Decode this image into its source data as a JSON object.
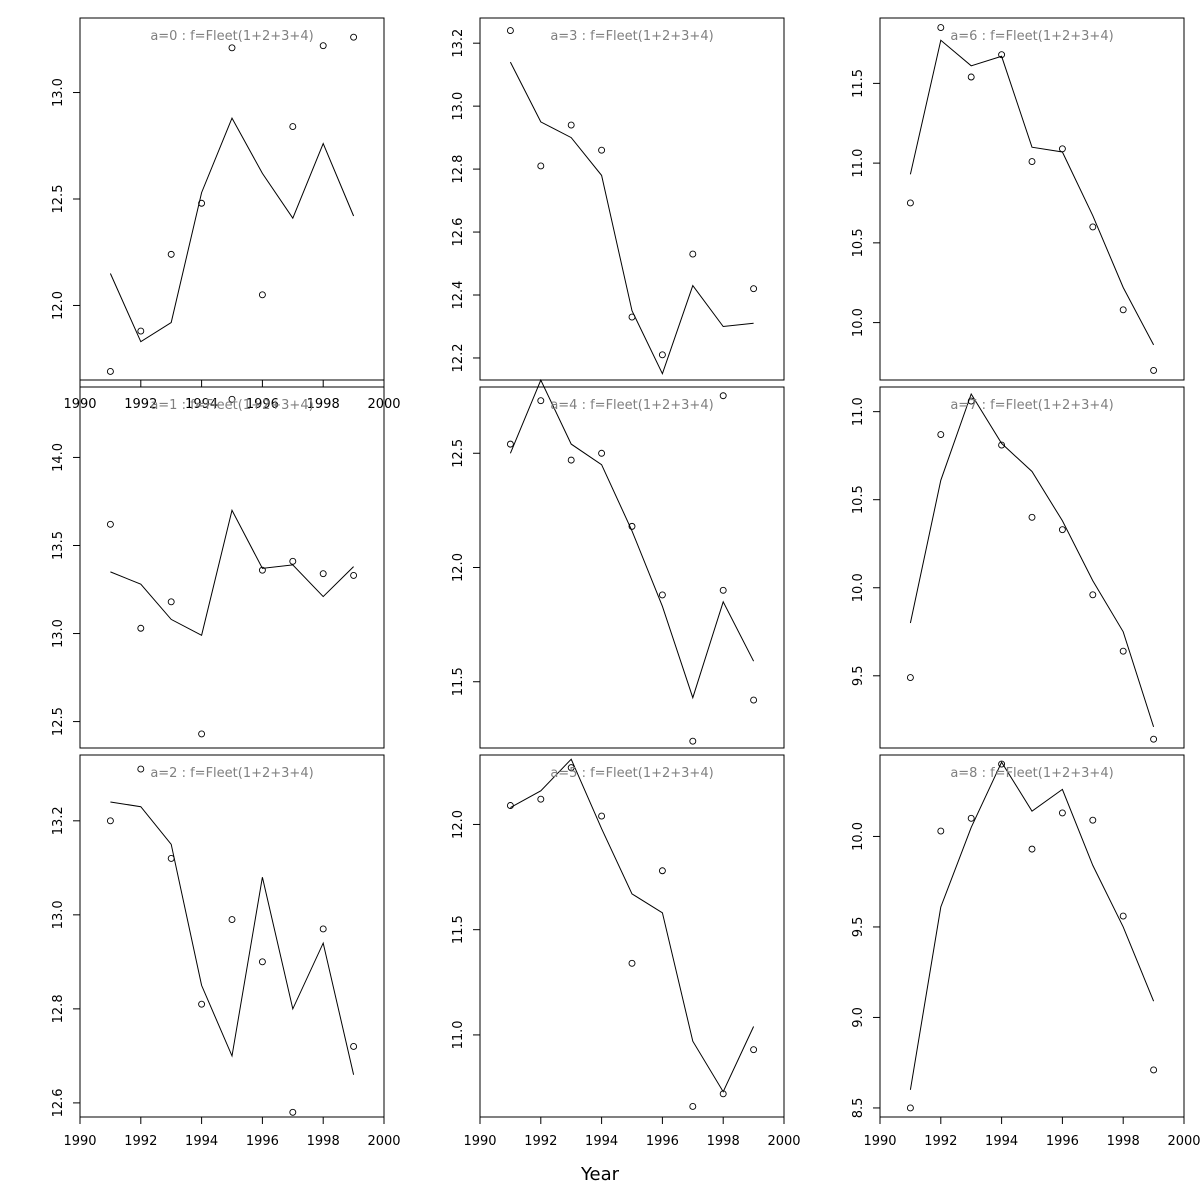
{
  "figure": {
    "xlabel": "Year"
  },
  "chart_data": [
    {
      "type": "line",
      "title": "a=0 : f=Fleet(1+2+3+4)",
      "x": [
        1991,
        1992,
        1993,
        1994,
        1995,
        1996,
        1997,
        1998,
        1999
      ],
      "observed": [
        11.69,
        11.88,
        12.24,
        12.48,
        13.21,
        12.05,
        12.84,
        13.22,
        13.26
      ],
      "fitted": [
        12.15,
        11.83,
        11.92,
        12.53,
        12.88,
        12.62,
        12.41,
        12.76,
        12.42
      ],
      "xlim": [
        1990,
        2000
      ],
      "ylim": [
        11.65,
        13.35
      ],
      "yticks": [
        12.0,
        12.5,
        13.0
      ],
      "xticks": [
        1990,
        1992,
        1994,
        1996,
        1998,
        2000
      ],
      "show_xticks": true
    },
    {
      "type": "line",
      "title": "a=1 : f=Fleet(1+2+3+4)",
      "x": [
        1991,
        1992,
        1993,
        1994,
        1995,
        1996,
        1997,
        1998,
        1999
      ],
      "observed": [
        13.62,
        13.03,
        13.18,
        12.43,
        14.33,
        13.36,
        13.41,
        13.34,
        13.33
      ],
      "fitted": [
        13.35,
        13.28,
        13.08,
        12.99,
        13.7,
        13.37,
        13.39,
        13.21,
        13.38
      ],
      "xlim": [
        1990,
        2000
      ],
      "ylim": [
        12.35,
        14.4
      ],
      "yticks": [
        12.5,
        13.0,
        13.5,
        14.0
      ],
      "xticks": [
        1990,
        1992,
        1994,
        1996,
        1998,
        2000
      ],
      "show_xticks": false
    },
    {
      "type": "line",
      "title": "a=2 : f=Fleet(1+2+3+4)",
      "x": [
        1991,
        1992,
        1993,
        1994,
        1995,
        1996,
        1997,
        1998,
        1999
      ],
      "observed": [
        13.2,
        13.31,
        13.12,
        12.81,
        12.99,
        12.9,
        12.58,
        12.97,
        12.72
      ],
      "fitted": [
        13.24,
        13.23,
        13.15,
        12.85,
        12.7,
        13.08,
        12.8,
        12.94,
        12.66
      ],
      "xlim": [
        1990,
        2000
      ],
      "ylim": [
        12.57,
        13.34
      ],
      "yticks": [
        12.6,
        12.8,
        13.0,
        13.2
      ],
      "xticks": [
        1990,
        1992,
        1994,
        1996,
        1998,
        2000
      ],
      "show_xticks": true
    },
    {
      "type": "line",
      "title": "a=3 : f=Fleet(1+2+3+4)",
      "x": [
        1991,
        1992,
        1993,
        1994,
        1995,
        1996,
        1997,
        1998,
        1999
      ],
      "observed": [
        13.24,
        12.81,
        12.94,
        12.86,
        12.33,
        12.21,
        12.53,
        12.08,
        12.42
      ],
      "fitted": [
        13.14,
        12.95,
        12.9,
        12.78,
        12.35,
        12.15,
        12.43,
        12.3,
        12.31
      ],
      "xlim": [
        1990,
        2000
      ],
      "ylim": [
        12.13,
        13.28
      ],
      "yticks": [
        12.2,
        12.4,
        12.6,
        12.8,
        13.0,
        13.2
      ],
      "xticks": [
        1990,
        1992,
        1994,
        1996,
        1998,
        2000
      ],
      "show_xticks": false
    },
    {
      "type": "line",
      "title": "a=4 : f=Fleet(1+2+3+4)",
      "x": [
        1991,
        1992,
        1993,
        1994,
        1995,
        1996,
        1997,
        1998,
        1999
      ],
      "observed": [
        12.54,
        12.73,
        12.47,
        12.5,
        12.18,
        11.88,
        11.24,
        11.9,
        11.42
      ],
      "fitted": [
        12.5,
        12.82,
        12.54,
        12.45,
        12.16,
        11.83,
        11.43,
        11.85,
        11.59
      ],
      "xlim": [
        1990,
        2000
      ],
      "ylim": [
        11.21,
        12.79
      ],
      "yticks": [
        11.5,
        12.0,
        12.5
      ],
      "xticks": [
        1990,
        1992,
        1994,
        1996,
        1998,
        2000
      ],
      "show_xticks": false
    },
    {
      "type": "line",
      "title": "a=5 : f=Fleet(1+2+3+4)",
      "x": [
        1991,
        1992,
        1993,
        1994,
        1995,
        1996,
        1997,
        1998,
        1999
      ],
      "observed": [
        12.09,
        12.12,
        12.27,
        12.04,
        11.34,
        11.78,
        10.66,
        10.72,
        10.93
      ],
      "fitted": [
        12.08,
        12.16,
        12.31,
        11.98,
        11.67,
        11.58,
        10.97,
        10.73,
        11.04
      ],
      "xlim": [
        1990,
        2000
      ],
      "ylim": [
        10.61,
        12.33
      ],
      "yticks": [
        11.0,
        11.5,
        12.0
      ],
      "xticks": [
        1990,
        1992,
        1994,
        1996,
        1998,
        2000
      ],
      "show_xticks": true
    },
    {
      "type": "line",
      "title": "a=6 : f=Fleet(1+2+3+4)",
      "x": [
        1991,
        1992,
        1993,
        1994,
        1995,
        1996,
        1997,
        1998,
        1999
      ],
      "observed": [
        10.75,
        11.85,
        11.54,
        11.68,
        11.01,
        11.09,
        10.6,
        10.08,
        9.7
      ],
      "fitted": [
        10.93,
        11.77,
        11.61,
        11.67,
        11.1,
        11.07,
        10.67,
        10.22,
        9.86
      ],
      "xlim": [
        1990,
        2000
      ],
      "ylim": [
        9.64,
        11.91
      ],
      "yticks": [
        10.0,
        10.5,
        11.0,
        11.5
      ],
      "xticks": [
        1990,
        1992,
        1994,
        1996,
        1998,
        2000
      ],
      "show_xticks": false
    },
    {
      "type": "line",
      "title": "a=7 : f=Fleet(1+2+3+4)",
      "x": [
        1991,
        1992,
        1993,
        1994,
        1995,
        1996,
        1997,
        1998,
        1999
      ],
      "observed": [
        9.49,
        10.87,
        11.06,
        10.81,
        10.4,
        10.33,
        9.96,
        9.64,
        9.14
      ],
      "fitted": [
        9.8,
        10.61,
        11.1,
        10.82,
        10.66,
        10.38,
        10.04,
        9.75,
        9.21
      ],
      "xlim": [
        1990,
        2000
      ],
      "ylim": [
        9.09,
        11.14
      ],
      "yticks": [
        9.5,
        10.0,
        10.5,
        11.0
      ],
      "xticks": [
        1990,
        1992,
        1994,
        1996,
        1998,
        2000
      ],
      "show_xticks": false
    },
    {
      "type": "line",
      "title": "a=8 : f=Fleet(1+2+3+4)",
      "x": [
        1991,
        1992,
        1993,
        1994,
        1995,
        1996,
        1997,
        1998,
        1999
      ],
      "observed": [
        8.5,
        10.03,
        10.1,
        10.4,
        9.93,
        10.13,
        10.09,
        9.56,
        8.71
      ],
      "fitted": [
        8.6,
        9.61,
        10.05,
        10.41,
        10.14,
        10.26,
        9.84,
        9.5,
        9.09
      ],
      "xlim": [
        1990,
        2000
      ],
      "ylim": [
        8.45,
        10.45
      ],
      "yticks": [
        8.5,
        9.0,
        9.5,
        10.0
      ],
      "xticks": [
        1990,
        1992,
        1994,
        1996,
        1998,
        2000
      ],
      "show_xticks": true
    }
  ]
}
